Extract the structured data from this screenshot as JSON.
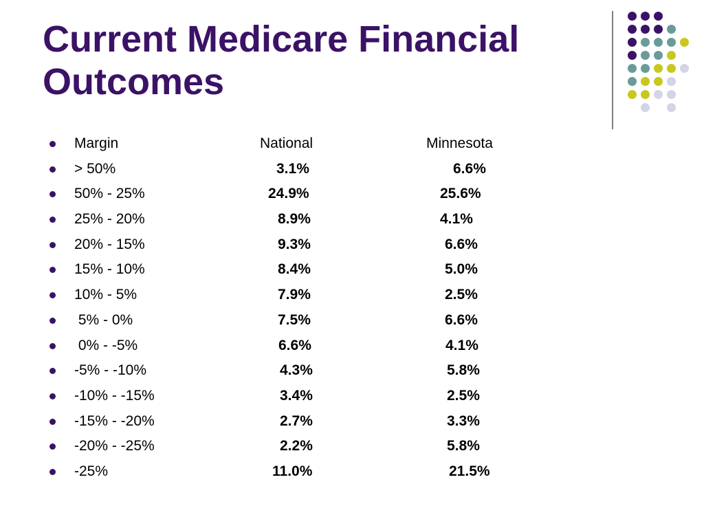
{
  "slide": {
    "title_lines": [
      "Current Medicare Financial",
      "Outcomes"
    ],
    "colors": {
      "title": "#3b1266",
      "purple": "#3b1266",
      "teal": "#6b9a9a",
      "yellow": "#c8c81e",
      "lavender": "#d4d4e8"
    },
    "table": {
      "columns": [
        "Margin",
        "National",
        "Minnesota"
      ],
      "rows": [
        {
          "margin": "> 50%",
          "national": "3.1%",
          "minnesota": "6.6%"
        },
        {
          "margin": "50% - 25%",
          "national": "24.9%",
          "minnesota": "25.6%"
        },
        {
          "margin": "25% - 20%",
          "national": "8.9%",
          "minnesota": "4.1%"
        },
        {
          "margin": "20% - 15%",
          "national": "9.3%",
          "minnesota": "6.6%"
        },
        {
          "margin": "15% - 10%",
          "national": "8.4%",
          "minnesota": "5.0%"
        },
        {
          "margin": "10% - 5%",
          "national": "7.9%",
          "minnesota": "2.5%"
        },
        {
          "margin": " 5% - 0%",
          "national": "7.5%",
          "minnesota": "6.6%"
        },
        {
          "margin": " 0% - -5%",
          "national": "6.6%",
          "minnesota": "4.1%"
        },
        {
          "margin": "-5% - -10%",
          "national": "4.3%",
          "minnesota": "5.8%"
        },
        {
          "margin": "-10% - -15%",
          "national": "3.4%",
          "minnesota": "2.5%"
        },
        {
          "margin": "-15% - -20%",
          "national": "2.7%",
          "minnesota": "3.3%"
        },
        {
          "margin": "-20% - -25%",
          "national": "2.2%",
          "minnesota": "5.8%"
        },
        {
          "margin": "-25%",
          "national": "11.0%",
          "minnesota": "21.5%"
        }
      ]
    }
  }
}
